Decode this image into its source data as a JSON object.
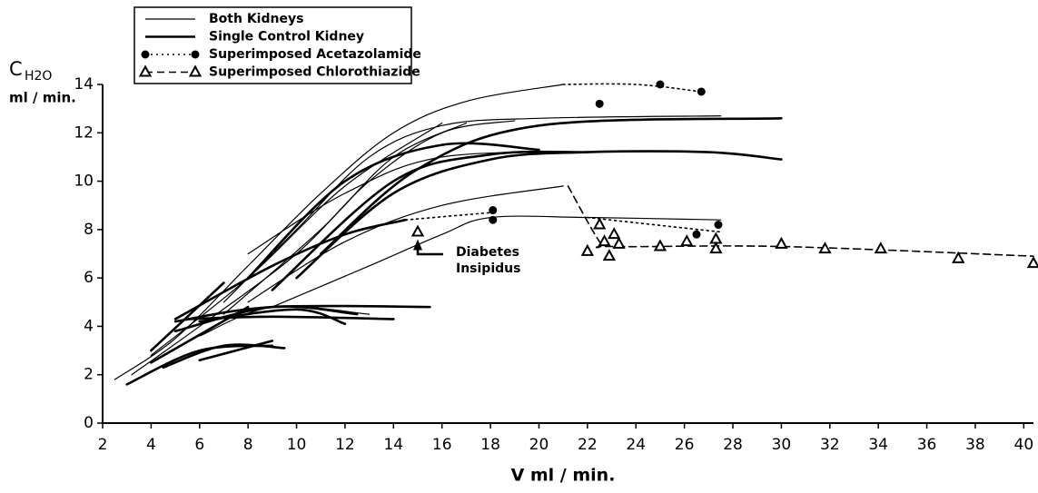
{
  "chart_data": {
    "type": "line",
    "xlabel": "V ml / min.",
    "ylabel": "C",
    "ylabel_sub": "H2O",
    "ylabel_units": "ml / min.",
    "xlim": [
      2,
      40.4
    ],
    "ylim": [
      0,
      14
    ],
    "xticks": [
      2,
      4,
      6,
      8,
      10,
      12,
      14,
      16,
      18,
      20,
      22,
      24,
      26,
      28,
      30,
      32,
      34,
      36,
      38,
      40
    ],
    "yticks": [
      0,
      2,
      4,
      6,
      8,
      10,
      12,
      14
    ],
    "annotation": {
      "lines": [
        "Diabetes",
        "Insipidus"
      ],
      "x": 15,
      "y": 7.9
    },
    "series": [
      {
        "name": "Both Kidneys",
        "color": "#000000",
        "line_width": 1.2,
        "dash": "none",
        "curves": [
          {
            "x": [
              2.5,
              5,
              8,
              11,
              14,
              17,
              21
            ],
            "y": [
              1.8,
              3.5,
              6.5,
              9.5,
              12,
              13.3,
              14
            ]
          },
          {
            "x": [
              7,
              10,
              13,
              16,
              20,
              27.5
            ],
            "y": [
              5,
              8,
              11,
              12.3,
              12.6,
              12.7
            ]
          },
          {
            "x": [
              3.2,
              6,
              10,
              13,
              16,
              19
            ],
            "y": [
              2,
              4,
              7,
              10,
              12,
              12.5
            ]
          },
          {
            "x": [
              4,
              8,
              12,
              16
            ],
            "y": [
              2.8,
              6,
              9.8,
              12.4
            ]
          },
          {
            "x": [
              7,
              11,
              14,
              17
            ],
            "y": [
              4.5,
              8,
              11,
              12.4
            ]
          },
          {
            "x": [
              8,
              12,
              16,
              21
            ],
            "y": [
              5,
              7.5,
              9,
              9.8
            ]
          },
          {
            "x": [
              9,
              13,
              16,
              18,
              22,
              27.5
            ],
            "y": [
              4.8,
              6.5,
              7.8,
              8.5,
              8.5,
              8.4
            ]
          },
          {
            "x": [
              8,
              12,
              16,
              22.5
            ],
            "y": [
              7,
              9.5,
              11,
              11.2
            ]
          },
          {
            "x": [
              6,
              9,
              13
            ],
            "y": [
              3.6,
              4.8,
              4.5
            ]
          }
        ]
      },
      {
        "name": "Single Control Kidney",
        "color": "#000000",
        "line_width": 2.6,
        "dash": "none",
        "curves": [
          {
            "x": [
              10,
              14,
              18,
              22,
              27,
              30
            ],
            "y": [
              6,
              9.5,
              10.9,
              11.2,
              11.2,
              10.9
            ]
          },
          {
            "x": [
              11,
              15,
              20,
              30
            ],
            "y": [
              7,
              10.5,
              12.3,
              12.6
            ]
          },
          {
            "x": [
              9,
              14,
              18,
              22
            ],
            "y": [
              5.5,
              10,
              11.1,
              11.2
            ]
          },
          {
            "x": [
              8,
              12,
              16,
              20
            ],
            "y": [
              6,
              10,
              11.5,
              11.3
            ]
          },
          {
            "x": [
              5,
              9,
              12,
              14.5
            ],
            "y": [
              4.3,
              6.5,
              7.8,
              8.4
            ]
          },
          {
            "x": [
              5,
              9,
              15.5
            ],
            "y": [
              4.2,
              4.8,
              4.8
            ]
          },
          {
            "x": [
              5.5,
              9,
              14
            ],
            "y": [
              4.3,
              4.4,
              4.3
            ]
          },
          {
            "x": [
              4,
              7
            ],
            "y": [
              3,
              5.8
            ]
          },
          {
            "x": [
              4,
              8
            ],
            "y": [
              2.5,
              4.8
            ]
          },
          {
            "x": [
              5,
              9,
              12.5
            ],
            "y": [
              3.8,
              4.8,
              4.5
            ]
          },
          {
            "x": [
              6,
              10,
              12
            ],
            "y": [
              4.2,
              4.7,
              4.1
            ]
          },
          {
            "x": [
              3,
              6,
              9
            ],
            "y": [
              1.6,
              3,
              3.2
            ]
          },
          {
            "x": [
              4.5,
              7,
              9.5
            ],
            "y": [
              2.3,
              3.2,
              3.1
            ]
          },
          {
            "x": [
              6,
              9
            ],
            "y": [
              2.6,
              3.4
            ]
          }
        ]
      },
      {
        "name": "Superimposed Acetazolamide",
        "color": "#000000",
        "line_width": 1.6,
        "dash": "2 4",
        "marker": "circle",
        "curves": [
          {
            "x": [
              21,
              24,
              26.7
            ],
            "y": [
              14,
              14,
              13.7
            ]
          },
          {
            "x": [
              14.5,
              18
            ],
            "y": [
              8.4,
              8.7
            ]
          },
          {
            "x": [
              22,
              27.5
            ],
            "y": [
              8.5,
              7.9
            ]
          }
        ],
        "points": {
          "x": [
            22.5,
            25,
            26.7,
            18.1,
            18.1,
            27.4,
            26.5
          ],
          "y": [
            13.2,
            14,
            13.7,
            8.8,
            8.4,
            8.2,
            7.8
          ]
        }
      },
      {
        "name": "Superimposed Chlorothiazide",
        "color": "#000000",
        "line_width": 1.6,
        "dash": "8 5",
        "marker": "triangle",
        "curves": [
          {
            "x": [
              21.2,
              22.5,
              23,
              30,
              40.4
            ],
            "y": [
              9.8,
              7.5,
              7.3,
              7.3,
              6.9
            ]
          }
        ],
        "points": {
          "x": [
            15,
            22,
            22.5,
            22.7,
            22.9,
            23.1,
            23.3,
            25,
            26.1,
            27.3,
            27.3,
            30,
            31.8,
            34.1,
            37.3,
            40.4
          ],
          "y": [
            7.9,
            7.1,
            8.2,
            7.5,
            6.9,
            7.8,
            7.4,
            7.3,
            7.5,
            7.6,
            7.2,
            7.4,
            7.2,
            7.2,
            6.8,
            6.6
          ]
        }
      }
    ]
  }
}
